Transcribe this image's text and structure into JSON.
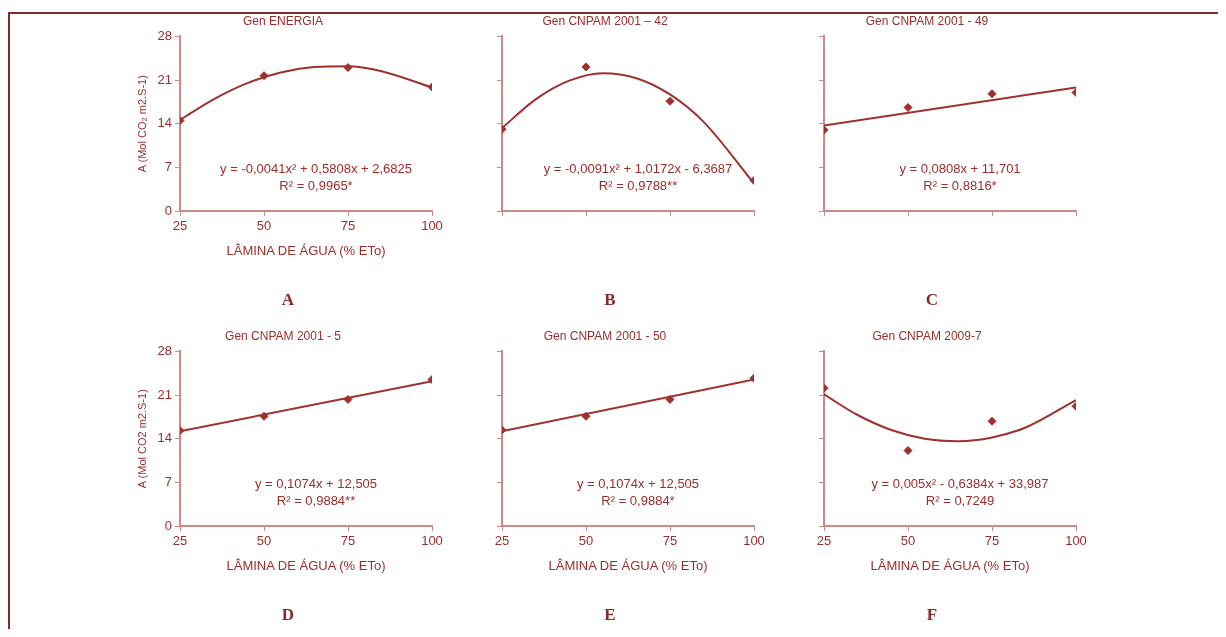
{
  "chart_data": [
    {
      "type": "scatter",
      "title": "Gen ENERGIA",
      "xlabel": "LÂMINA DE ÁGUA (% ETo)",
      "ylabel": "A (Mol CO₂ m2.S-1)",
      "xlim": [
        25,
        100
      ],
      "xticks": [
        25,
        50,
        75,
        100
      ],
      "ylim": [
        0,
        28
      ],
      "yticks": [
        0,
        7,
        14,
        21,
        28
      ],
      "grid": false,
      "legend": false,
      "marker": "diamond",
      "annotations": [
        "y = -0,0041x² + 0,5808x + 2,6825",
        "R² = 0,9965*",
        "A"
      ],
      "series": [
        {
          "type": "scatter",
          "color": "#a0302d",
          "x": [
            25,
            50,
            75,
            100
          ],
          "values": [
            14.5,
            21.7,
            23.0,
            19.9
          ]
        },
        {
          "type": "line",
          "color": "#a0302d",
          "marker": "none",
          "line_style": "solid",
          "x": [
            25,
            35,
            45,
            55,
            65,
            75,
            85,
            100
          ],
          "values": [
            14.6,
            17.9,
            20.5,
            22.2,
            23.1,
            23.2,
            22.4,
            19.8
          ]
        }
      ]
    },
    {
      "type": "scatter",
      "title": "Gen CNPAM 2001 – 42",
      "xlim": [
        25,
        100
      ],
      "xticks": [
        25,
        50,
        75,
        100
      ],
      "ylim": [
        0,
        28
      ],
      "yticks": [
        0,
        7,
        14,
        21,
        28
      ],
      "tick_labels": false,
      "grid": false,
      "legend": false,
      "marker": "diamond",
      "annotations": [
        "y = -0,0091x² + 1,0172x - 6,3687",
        "R² = 0,9788**",
        "B"
      ],
      "series": [
        {
          "type": "scatter",
          "color": "#a0302d",
          "x": [
            25,
            50,
            75,
            100
          ],
          "values": [
            13.1,
            23.1,
            17.6,
            4.9
          ]
        },
        {
          "type": "line",
          "color": "#a0302d",
          "marker": "none",
          "line_style": "solid",
          "x": [
            25,
            35,
            45,
            55,
            65,
            75,
            85,
            100
          ],
          "values": [
            13.3,
            17.9,
            20.9,
            22.1,
            21.3,
            18.7,
            14.3,
            4.4
          ]
        }
      ]
    },
    {
      "type": "scatter",
      "title": "Gen CNPAM 2001 - 49",
      "xlim": [
        25,
        100
      ],
      "xticks": [
        25,
        50,
        75,
        100
      ],
      "ylim": [
        0,
        28
      ],
      "yticks": [
        0,
        7,
        14,
        21,
        28
      ],
      "tick_labels": false,
      "grid": false,
      "legend": false,
      "marker": "diamond",
      "annotations": [
        "y = 0,0808x + 11,701",
        "R² = 0,8816*",
        "C"
      ],
      "series": [
        {
          "type": "scatter",
          "color": "#a0302d",
          "x": [
            25,
            50,
            75,
            100
          ],
          "values": [
            13.0,
            16.6,
            18.8,
            19.0
          ]
        },
        {
          "type": "line",
          "color": "#a0302d",
          "marker": "none",
          "line_style": "solid",
          "x": [
            25,
            100
          ],
          "values": [
            13.7,
            19.8
          ]
        }
      ]
    },
    {
      "type": "scatter",
      "title": "Gen CNPAM 2001 - 5",
      "xlabel": "LÂMINA DE ÁGUA (% ETo)",
      "ylabel": "A (Mol CO2 m2.S-1)",
      "xlim": [
        25,
        100
      ],
      "xticks": [
        25,
        50,
        75,
        100
      ],
      "ylim": [
        0,
        28
      ],
      "yticks": [
        0,
        7,
        14,
        21,
        28
      ],
      "grid": false,
      "legend": false,
      "marker": "diamond",
      "annotations": [
        "y = 0,1074x + 12,505",
        "R² = 0,9884**",
        "D"
      ],
      "series": [
        {
          "type": "scatter",
          "color": "#a0302d",
          "x": [
            25,
            50,
            75,
            100
          ],
          "values": [
            15.3,
            17.6,
            20.3,
            23.5
          ]
        },
        {
          "type": "line",
          "color": "#a0302d",
          "marker": "none",
          "line_style": "solid",
          "x": [
            25,
            100
          ],
          "values": [
            15.2,
            23.2
          ]
        }
      ]
    },
    {
      "type": "scatter",
      "title": "Gen CNPAM 2001 - 50",
      "xlabel": "LÂMINA DE ÁGUA (% ETo)",
      "xlim": [
        25,
        100
      ],
      "xticks": [
        25,
        50,
        75,
        100
      ],
      "ylim": [
        0,
        28
      ],
      "yticks": [
        0,
        7,
        14,
        21,
        28
      ],
      "tick_labels": "x",
      "grid": false,
      "legend": false,
      "marker": "diamond",
      "annotations": [
        "y = 0,1074x + 12,505",
        "R² = 0,9884*",
        "E"
      ],
      "series": [
        {
          "type": "scatter",
          "color": "#a0302d",
          "x": [
            25,
            50,
            75,
            100
          ],
          "values": [
            15.4,
            17.6,
            20.3,
            23.7
          ]
        },
        {
          "type": "line",
          "color": "#a0302d",
          "marker": "none",
          "line_style": "solid",
          "x": [
            25,
            100
          ],
          "values": [
            15.2,
            23.5
          ]
        }
      ]
    },
    {
      "type": "scatter",
      "title": "Gen CNPAM 2009-7",
      "xlabel": "LÂMINA DE ÁGUA (% ETo)",
      "xlim": [
        25,
        100
      ],
      "xticks": [
        25,
        50,
        75,
        100
      ],
      "ylim": [
        0,
        28
      ],
      "yticks": [
        0,
        7,
        14,
        21,
        28
      ],
      "tick_labels": "x",
      "grid": false,
      "legend": false,
      "marker": "diamond",
      "annotations": [
        "y = 0,005x² - 0,6384x + 33,987",
        "R² = 0,7249",
        "F"
      ],
      "series": [
        {
          "type": "scatter",
          "color": "#a0302d",
          "x": [
            25,
            50,
            75,
            100
          ],
          "values": [
            22.1,
            12.1,
            16.8,
            19.2
          ]
        },
        {
          "type": "line",
          "color": "#a0302d",
          "marker": "none",
          "line_style": "solid",
          "x": [
            25,
            35,
            45,
            55,
            65,
            75,
            85,
            100
          ],
          "values": [
            21.1,
            17.8,
            15.4,
            14.0,
            13.6,
            14.2,
            15.8,
            20.2
          ]
        }
      ]
    }
  ]
}
